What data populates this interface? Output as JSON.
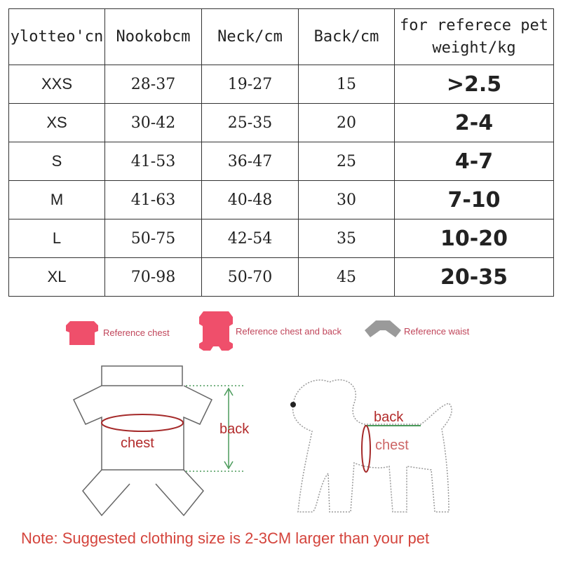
{
  "table": {
    "headers": [
      "ylotteo'cn",
      "Nookobcm",
      "Neck/cm",
      "Back/cm",
      "for referece pet weight/kg"
    ],
    "rows": [
      [
        "XXS",
        "28-37",
        "19-27",
        "15",
        ">2.5"
      ],
      [
        "XS",
        "30-42",
        "25-35",
        "20",
        "2-4"
      ],
      [
        "S",
        "41-53",
        "36-47",
        "25",
        "4-7"
      ],
      [
        "M",
        "41-63",
        "40-48",
        "30",
        "7-10"
      ],
      [
        "L",
        "50-75",
        "42-54",
        "35",
        "10-20"
      ],
      [
        "XL",
        "70-98",
        "50-70",
        "45",
        "20-35"
      ]
    ]
  },
  "legend": {
    "items": [
      {
        "icon": "shirt-icon",
        "label": "Reference chest",
        "color": "#ef4f6b"
      },
      {
        "icon": "jumpsuit-icon",
        "label": "Reference chest and back",
        "color": "#ef4f6b"
      },
      {
        "icon": "waist-icon",
        "label": "Reference waist",
        "color": "#9a9a9a"
      }
    ]
  },
  "diagram": {
    "garment_back_label": "back",
    "garment_chest_label": "chest",
    "dog_back_label": "back",
    "dog_chest_label": "chest"
  },
  "note": "Note: Suggested clothing size is 2-3CM larger than your pet"
}
